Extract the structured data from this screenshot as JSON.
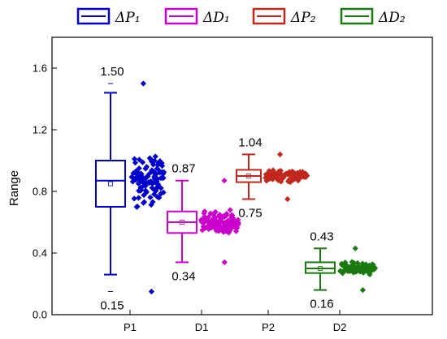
{
  "chart_data": {
    "type": "box",
    "ylabel": "Range",
    "ylim": [
      0.0,
      1.8
    ],
    "yticks": [
      "0.0",
      "0.4",
      "0.8",
      "1.2",
      "1.6"
    ],
    "categories": [
      "P1",
      "D1",
      "P2",
      "D2"
    ],
    "series": [
      {
        "name": "ΔP₁",
        "color": "#0000cc",
        "stats": {
          "whisker_low": 0.26,
          "q1": 0.7,
          "median": 0.87,
          "q3": 1.0,
          "whisker_high": 1.44,
          "mean": 0.85,
          "min": 0.15,
          "max": 1.5
        }
      },
      {
        "name": "ΔD₁",
        "color": "#cc00cc",
        "stats": {
          "whisker_low": 0.34,
          "q1": 0.53,
          "median": 0.6,
          "q3": 0.67,
          "whisker_high": 0.87,
          "mean": 0.6,
          "min": 0.34,
          "max": 0.87
        }
      },
      {
        "name": "ΔP₂",
        "color": "#c0281e",
        "stats": {
          "whisker_low": 0.75,
          "q1": 0.86,
          "median": 0.9,
          "q3": 0.94,
          "whisker_high": 1.04,
          "mean": 0.9,
          "min": 0.75,
          "max": 1.04
        }
      },
      {
        "name": "ΔD₂",
        "color": "#1a7a10",
        "stats": {
          "whisker_low": 0.16,
          "q1": 0.27,
          "median": 0.3,
          "q3": 0.34,
          "whisker_high": 0.43,
          "mean": 0.3,
          "min": 0.16,
          "max": 0.43
        }
      }
    ],
    "annotations": [
      {
        "text": "1.50",
        "series": 0,
        "value": 1.5,
        "pos": "above"
      },
      {
        "text": "0.15",
        "series": 0,
        "value": 0.15,
        "pos": "below"
      },
      {
        "text": "0.87",
        "series": 1,
        "value": 0.87,
        "pos": "above"
      },
      {
        "text": "0.34",
        "series": 1,
        "value": 0.34,
        "pos": "below"
      },
      {
        "text": "1.04",
        "series": 2,
        "value": 1.04,
        "pos": "above"
      },
      {
        "text": "0.75",
        "series": 2,
        "value": 0.75,
        "pos": "below"
      },
      {
        "text": "0.43",
        "series": 3,
        "value": 0.43,
        "pos": "above"
      },
      {
        "text": "0.16",
        "series": 3,
        "value": 0.16,
        "pos": "below"
      }
    ],
    "legend": {
      "placement": "top"
    },
    "grid": false
  }
}
